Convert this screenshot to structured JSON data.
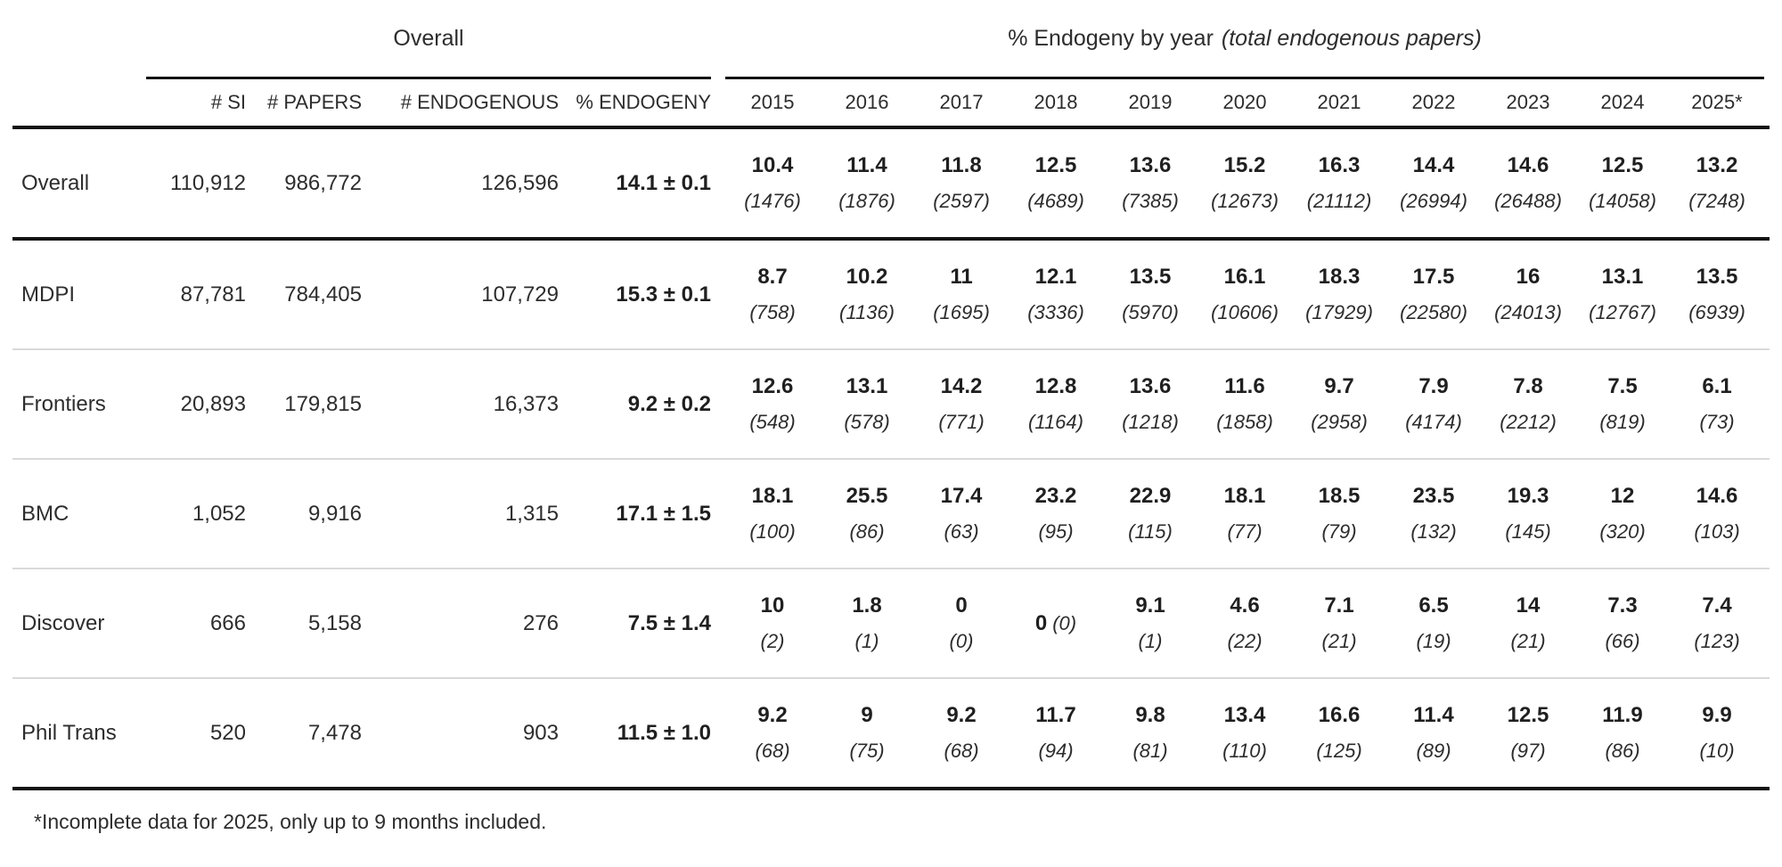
{
  "chart_data": {
    "type": "table",
    "spanners": {
      "overall": "Overall",
      "by_year": "% Endogeny by year",
      "by_year_note": "(total endogenous papers)"
    },
    "stat_columns": {
      "si": "# SI",
      "papers": "# PAPERS",
      "endogenous": "# ENDOGENOUS",
      "endogeny": "% ENDOGENY"
    },
    "year_columns": [
      "2015",
      "2016",
      "2017",
      "2018",
      "2019",
      "2020",
      "2021",
      "2022",
      "2023",
      "2024",
      "2025*"
    ],
    "rows": [
      {
        "label": "Overall",
        "si": "110,912",
        "papers": "986,772",
        "endogenous": "126,596",
        "endogeny": "14.1 ± 0.1",
        "by_year": [
          {
            "value": "10.4",
            "count": "(1476)"
          },
          {
            "value": "11.4",
            "count": "(1876)"
          },
          {
            "value": "11.8",
            "count": "(2597)"
          },
          {
            "value": "12.5",
            "count": "(4689)"
          },
          {
            "value": "13.6",
            "count": "(7385)"
          },
          {
            "value": "15.2",
            "count": "(12673)"
          },
          {
            "value": "16.3",
            "count": "(21112)"
          },
          {
            "value": "14.4",
            "count": "(26994)"
          },
          {
            "value": "14.6",
            "count": "(26488)"
          },
          {
            "value": "12.5",
            "count": "(14058)"
          },
          {
            "value": "13.2",
            "count": "(7248)"
          }
        ]
      },
      {
        "label": "MDPI",
        "si": "87,781",
        "papers": "784,405",
        "endogenous": "107,729",
        "endogeny": "15.3 ± 0.1",
        "by_year": [
          {
            "value": "8.7",
            "count": "(758)"
          },
          {
            "value": "10.2",
            "count": "(1136)"
          },
          {
            "value": "11",
            "count": "(1695)"
          },
          {
            "value": "12.1",
            "count": "(3336)"
          },
          {
            "value": "13.5",
            "count": "(5970)"
          },
          {
            "value": "16.1",
            "count": "(10606)"
          },
          {
            "value": "18.3",
            "count": "(17929)"
          },
          {
            "value": "17.5",
            "count": "(22580)"
          },
          {
            "value": "16",
            "count": "(24013)"
          },
          {
            "value": "13.1",
            "count": "(12767)"
          },
          {
            "value": "13.5",
            "count": "(6939)"
          }
        ]
      },
      {
        "label": "Frontiers",
        "si": "20,893",
        "papers": "179,815",
        "endogenous": "16,373",
        "endogeny": "9.2 ± 0.2",
        "by_year": [
          {
            "value": "12.6",
            "count": "(548)"
          },
          {
            "value": "13.1",
            "count": "(578)"
          },
          {
            "value": "14.2",
            "count": "(771)"
          },
          {
            "value": "12.8",
            "count": "(1164)"
          },
          {
            "value": "13.6",
            "count": "(1218)"
          },
          {
            "value": "11.6",
            "count": "(1858)"
          },
          {
            "value": "9.7",
            "count": "(2958)"
          },
          {
            "value": "7.9",
            "count": "(4174)"
          },
          {
            "value": "7.8",
            "count": "(2212)"
          },
          {
            "value": "7.5",
            "count": "(819)"
          },
          {
            "value": "6.1",
            "count": "(73)"
          }
        ]
      },
      {
        "label": "BMC",
        "si": "1,052",
        "papers": "9,916",
        "endogenous": "1,315",
        "endogeny": "17.1 ± 1.5",
        "by_year": [
          {
            "value": "18.1",
            "count": "(100)"
          },
          {
            "value": "25.5",
            "count": "(86)"
          },
          {
            "value": "17.4",
            "count": "(63)"
          },
          {
            "value": "23.2",
            "count": "(95)"
          },
          {
            "value": "22.9",
            "count": "(115)"
          },
          {
            "value": "18.1",
            "count": "(77)"
          },
          {
            "value": "18.5",
            "count": "(79)"
          },
          {
            "value": "23.5",
            "count": "(132)"
          },
          {
            "value": "19.3",
            "count": "(145)"
          },
          {
            "value": "12",
            "count": "(320)"
          },
          {
            "value": "14.6",
            "count": "(103)"
          }
        ]
      },
      {
        "label": "Discover",
        "si": "666",
        "papers": "5,158",
        "endogenous": "276",
        "endogeny": "7.5 ± 1.4",
        "by_year": [
          {
            "value": "10",
            "count": "(2)"
          },
          {
            "value": "1.8",
            "count": "(1)"
          },
          {
            "value": "0",
            "count": "(0)"
          },
          {
            "value": "0",
            "count": "(0)"
          },
          {
            "value": "9.1",
            "count": "(1)"
          },
          {
            "value": "4.6",
            "count": "(22)"
          },
          {
            "value": "7.1",
            "count": "(21)"
          },
          {
            "value": "6.5",
            "count": "(19)"
          },
          {
            "value": "14",
            "count": "(21)"
          },
          {
            "value": "7.3",
            "count": "(66)"
          },
          {
            "value": "7.4",
            "count": "(123)"
          }
        ]
      },
      {
        "label": "Phil Trans",
        "si": "520",
        "papers": "7,478",
        "endogenous": "903",
        "endogeny": "11.5 ± 1.0",
        "by_year": [
          {
            "value": "9.2",
            "count": "(68)"
          },
          {
            "value": "9",
            "count": "(75)"
          },
          {
            "value": "9.2",
            "count": "(68)"
          },
          {
            "value": "11.7",
            "count": "(94)"
          },
          {
            "value": "9.8",
            "count": "(81)"
          },
          {
            "value": "13.4",
            "count": "(110)"
          },
          {
            "value": "16.6",
            "count": "(125)"
          },
          {
            "value": "11.4",
            "count": "(89)"
          },
          {
            "value": "12.5",
            "count": "(97)"
          },
          {
            "value": "11.9",
            "count": "(86)"
          },
          {
            "value": "9.9",
            "count": "(10)"
          }
        ]
      }
    ],
    "footnote": "*Incomplete data for 2025, only up to 9 months included."
  }
}
